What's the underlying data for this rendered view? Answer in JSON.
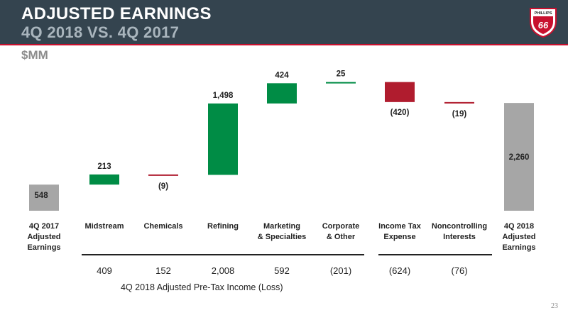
{
  "header": {
    "title": "ADJUSTED EARNINGS",
    "subtitle": "4Q 2018 VS. 4Q 2017",
    "unit": "$MM",
    "logo_text": "PHILLIPS",
    "logo_number": "66"
  },
  "colors": {
    "header_bg": "#34444f",
    "accent_red": "#c8102e",
    "positive": "#008c45",
    "negative": "#b01c2e",
    "total": "#a6a6a6"
  },
  "chart_data": {
    "type": "bar",
    "subtype": "waterfall",
    "categories": [
      "4Q 2017\nAdjusted\nEarnings",
      "Midstream",
      "Chemicals",
      "Refining",
      "Marketing\n& Specialties",
      "Corporate\n& Other",
      "Income Tax\nExpense",
      "Noncontrolling\nInterests",
      "4Q 2018\nAdjusted\nEarnings"
    ],
    "values": [
      548,
      213,
      -9,
      1498,
      424,
      25,
      -420,
      -19,
      2260
    ],
    "value_labels": [
      "548",
      "213",
      "(9)",
      "1,498",
      "424",
      "25",
      "(420)",
      "(19)",
      "2,260"
    ],
    "kinds": [
      "total",
      "delta",
      "delta",
      "delta",
      "delta",
      "delta",
      "delta",
      "delta",
      "total"
    ],
    "pre_tax": {
      "label": "4Q 2018 Adjusted Pre-Tax Income (Loss)",
      "values": [
        "409",
        "152",
        "2,008",
        "592",
        "(201)",
        "(624)",
        "(76)"
      ]
    }
  },
  "footer": {
    "page_number": "23"
  }
}
